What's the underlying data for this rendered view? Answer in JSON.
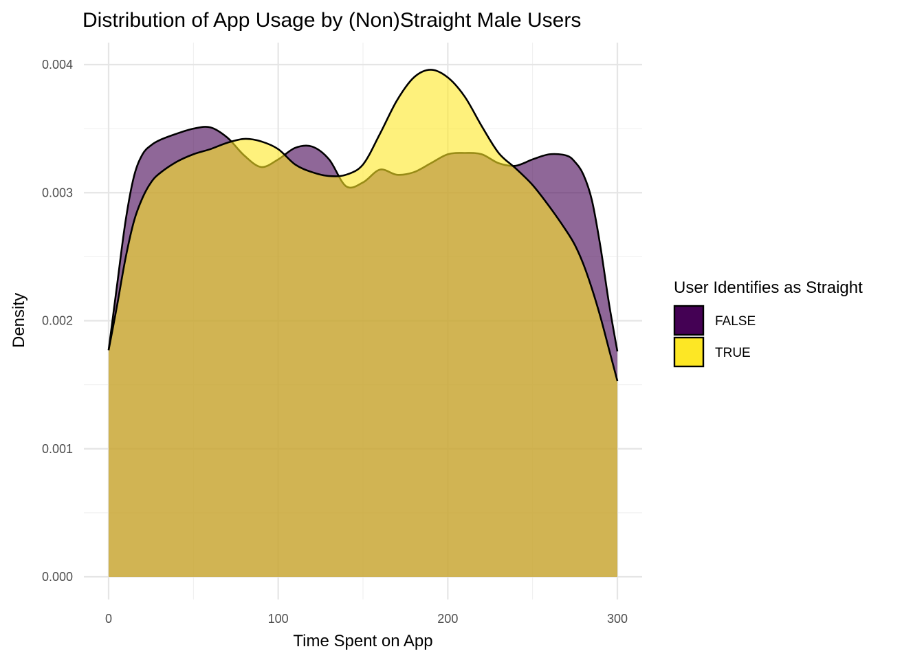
{
  "chart_data": {
    "type": "area",
    "title": "Distribution of App Usage by (Non)Straight Male Users",
    "xlabel": "Time Spent on App",
    "ylabel": "Density",
    "xlim": [
      0,
      300
    ],
    "ylim": [
      0,
      0.004
    ],
    "x_ticks": [
      0,
      100,
      200,
      300
    ],
    "x_tick_labels": [
      "0",
      "100",
      "200",
      "300"
    ],
    "y_ticks": [
      0,
      0.001,
      0.002,
      0.003,
      0.004
    ],
    "y_tick_labels": [
      "0.000",
      "0.001",
      "0.002",
      "0.003",
      "0.004"
    ],
    "grid": true,
    "legend": {
      "title": "User Identifies as Straight",
      "position": "right"
    },
    "series": [
      {
        "name": "FALSE",
        "color": "#440154",
        "opacity": 0.6,
        "x": [
          0,
          5,
          10,
          15,
          20,
          25,
          30,
          40,
          50,
          60,
          70,
          80,
          90,
          100,
          110,
          120,
          130,
          140,
          150,
          160,
          170,
          180,
          190,
          200,
          210,
          220,
          230,
          240,
          250,
          260,
          270,
          275,
          280,
          285,
          290,
          295,
          300
        ],
        "y": [
          0.00177,
          0.00228,
          0.00278,
          0.00313,
          0.0033,
          0.00337,
          0.00341,
          0.00346,
          0.0035,
          0.00351,
          0.00343,
          0.00329,
          0.0032,
          0.00326,
          0.00335,
          0.00336,
          0.00326,
          0.00305,
          0.00308,
          0.00318,
          0.00314,
          0.00316,
          0.00323,
          0.0033,
          0.00331,
          0.0033,
          0.00323,
          0.00321,
          0.00326,
          0.0033,
          0.00329,
          0.00324,
          0.00314,
          0.00294,
          0.00258,
          0.00214,
          0.00176
        ]
      },
      {
        "name": "TRUE",
        "color": "#fde725",
        "opacity": 0.6,
        "x": [
          0,
          5,
          10,
          15,
          20,
          25,
          30,
          40,
          50,
          60,
          70,
          80,
          90,
          100,
          110,
          120,
          130,
          140,
          150,
          160,
          170,
          180,
          190,
          200,
          210,
          220,
          230,
          240,
          250,
          260,
          270,
          275,
          280,
          285,
          290,
          295,
          300
        ],
        "y": [
          0.00177,
          0.00212,
          0.00249,
          0.00278,
          0.00296,
          0.00308,
          0.00315,
          0.00324,
          0.0033,
          0.00334,
          0.00339,
          0.00342,
          0.0034,
          0.00334,
          0.00322,
          0.00316,
          0.00313,
          0.00314,
          0.00322,
          0.00346,
          0.00372,
          0.0039,
          0.00396,
          0.0039,
          0.00375,
          0.00352,
          0.00331,
          0.00319,
          0.00306,
          0.00289,
          0.0027,
          0.00259,
          0.00244,
          0.00225,
          0.00203,
          0.00178,
          0.00153
        ]
      }
    ]
  }
}
